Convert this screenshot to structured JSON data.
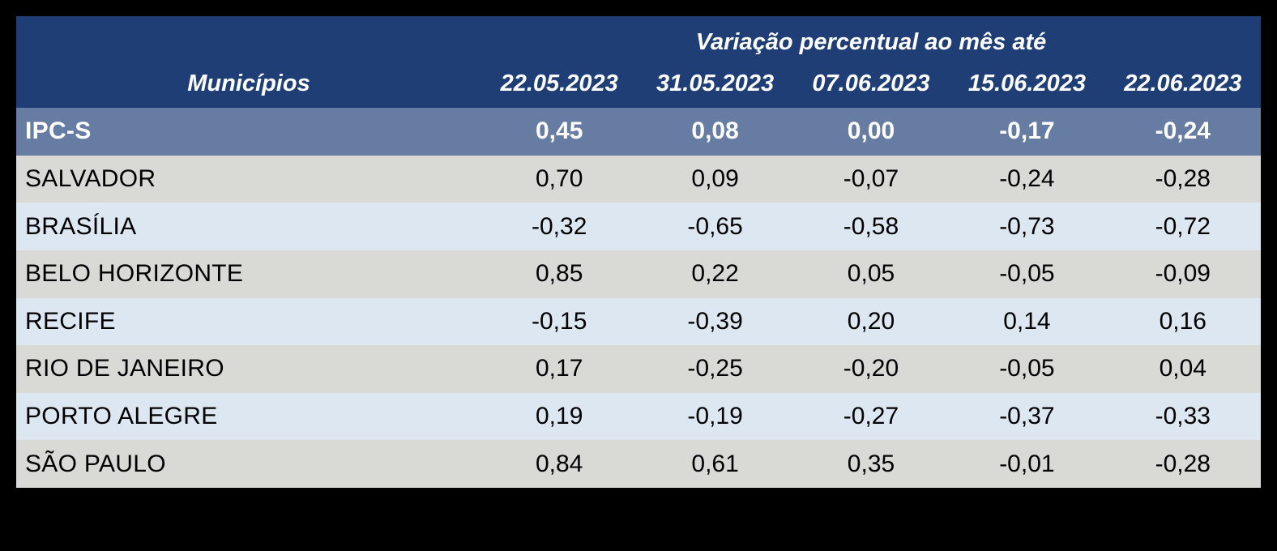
{
  "chart_data": {
    "type": "table",
    "group_header": "Variação percentual ao mês até",
    "row_header_label": "Municípios",
    "columns": [
      "22.05.2023",
      "31.05.2023",
      "07.06.2023",
      "15.06.2023",
      "22.06.2023"
    ],
    "index_row": {
      "label": "IPC-S",
      "values": [
        "0,45",
        "0,08",
        "0,00",
        "-0,17",
        "-0,24"
      ]
    },
    "rows": [
      {
        "label": "SALVADOR",
        "values": [
          "0,70",
          "0,09",
          "-0,07",
          "-0,24",
          "-0,28"
        ]
      },
      {
        "label": "BRASÍLIA",
        "values": [
          "-0,32",
          "-0,65",
          "-0,58",
          "-0,73",
          "-0,72"
        ]
      },
      {
        "label": "BELO HORIZONTE",
        "values": [
          "0,85",
          "0,22",
          "0,05",
          "-0,05",
          "-0,09"
        ]
      },
      {
        "label": "RECIFE",
        "values": [
          "-0,15",
          "-0,39",
          "0,20",
          "0,14",
          "0,16"
        ]
      },
      {
        "label": "RIO DE JANEIRO",
        "values": [
          "0,17",
          "-0,25",
          "-0,20",
          "-0,05",
          "0,04"
        ]
      },
      {
        "label": "PORTO ALEGRE",
        "values": [
          "0,19",
          "-0,19",
          "-0,27",
          "-0,37",
          "-0,33"
        ]
      },
      {
        "label": "SÃO PAULO",
        "values": [
          "0,84",
          "0,61",
          "0,35",
          "-0,01",
          "-0,28"
        ]
      }
    ],
    "layout": {
      "grid": "off",
      "legend": "none",
      "value_format": "comma-decimal, two places"
    }
  },
  "colors": {
    "page_bg": "#000000",
    "header_bg": "#1F3E75",
    "header_text": "#FFFFFF",
    "index_row_bg": "#667CA3",
    "index_row_text": "#FFFFFF",
    "row_alt_gray": "#D9D9D6",
    "row_alt_blue": "#DDE7F2",
    "body_text": "#000000"
  }
}
